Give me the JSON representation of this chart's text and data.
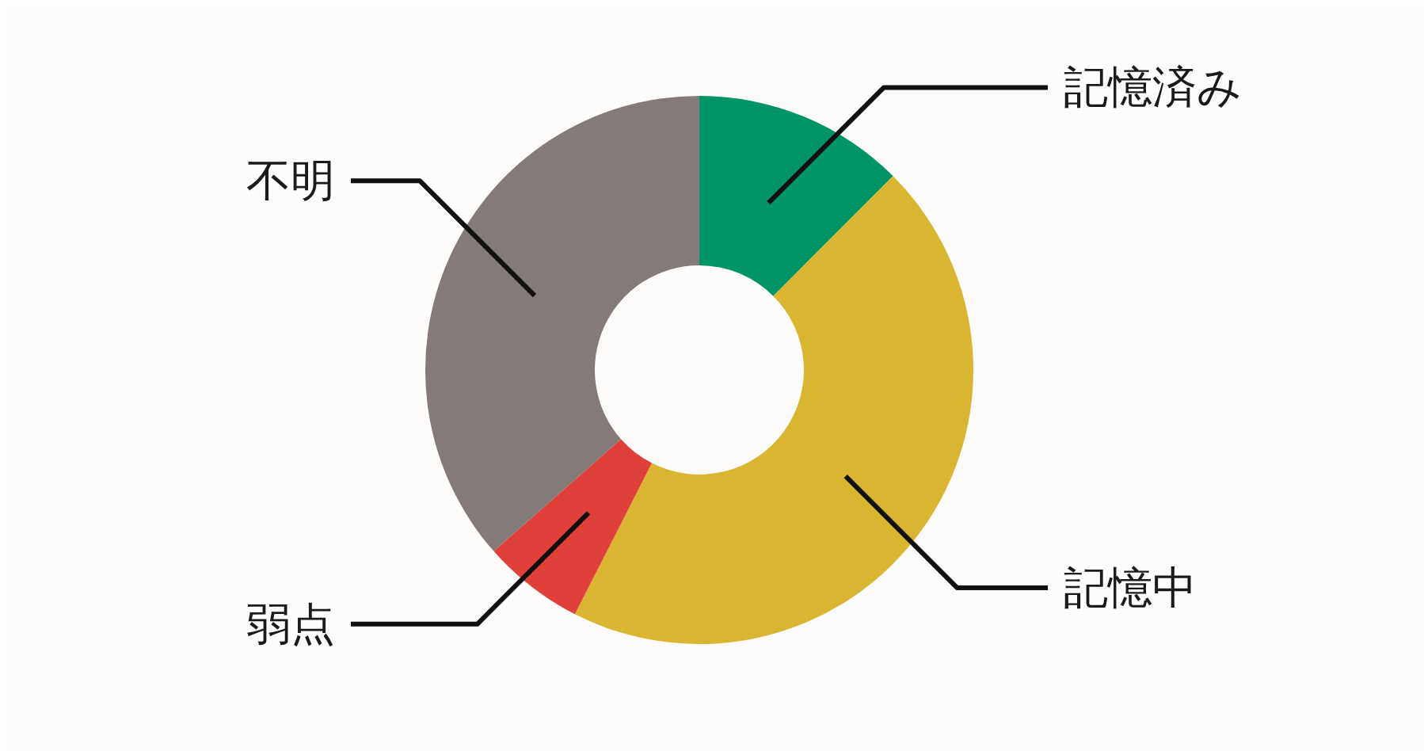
{
  "chart_data": {
    "type": "donut",
    "categories": [
      "記憶済み",
      "記憶中",
      "弱点",
      "不明"
    ],
    "values": [
      12.5,
      45,
      6,
      36.5
    ],
    "colors": [
      "#009466",
      "#d9b531",
      "#e0403a",
      "#847a77"
    ]
  }
}
